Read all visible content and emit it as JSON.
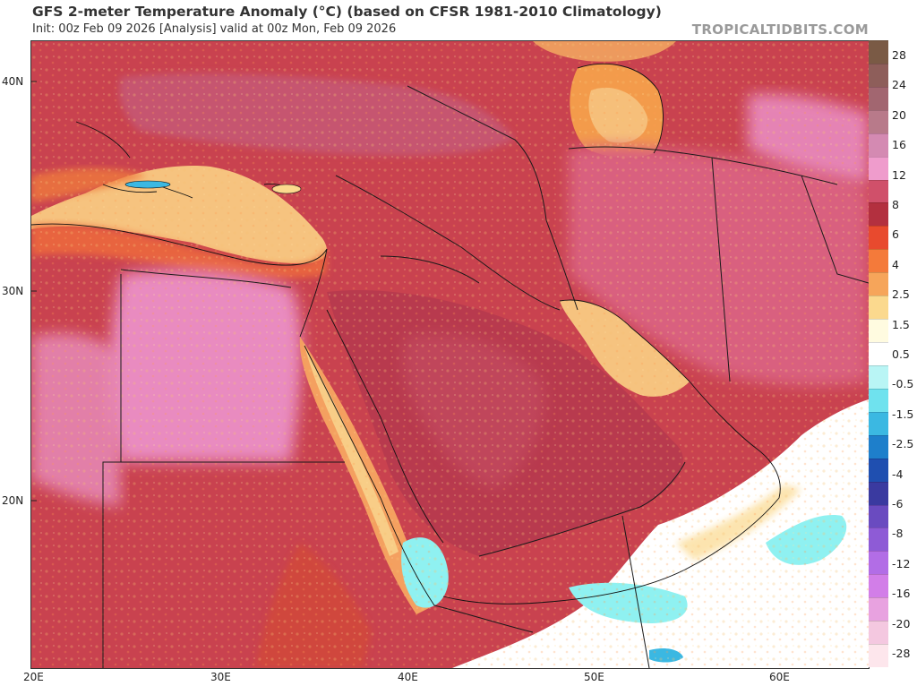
{
  "header": {
    "title": "GFS 2-meter Temperature Anomaly (°C) (based on CFSR 1981-2010 Climatology)",
    "subtitle": "Init: 00z Feb 09 2026   [Analysis]   valid at 00z Mon, Feb 09 2026",
    "brand": "TROPICALTIDBITS.COM"
  },
  "map": {
    "lat_labels": [
      "40N",
      "30N",
      "20N"
    ],
    "lon_labels": [
      "20E",
      "30E",
      "40E",
      "50E",
      "60E"
    ],
    "colors": {
      "sea_warm": "#f6c37f",
      "land_hot": "#b83a4e",
      "land_warm": "#d8555f",
      "land_pink": "#e98bc0",
      "coast_orange": "#ee6a3d",
      "cool_cyan": "#8ff1f1",
      "border": "#1a1a1a"
    }
  },
  "colorbar": {
    "labels": [
      "28",
      "24",
      "20",
      "16",
      "12",
      "8",
      "6",
      "4",
      "2.5",
      "1.5",
      "0.5",
      "-0.5",
      "-1.5",
      "-2.5",
      "-4",
      "-6",
      "-8",
      "-12",
      "-16",
      "-20",
      "-28"
    ],
    "colors": [
      "#7a5a45",
      "#8e5e5a",
      "#a26670",
      "#b87a8a",
      "#d48ab2",
      "#ef9ccc",
      "#d0506a",
      "#b3303f",
      "#e84a2e",
      "#f47a3a",
      "#f6a55a",
      "#fbd98e",
      "#fffbe0",
      "#ffffff",
      "#b9f5f5",
      "#6fe2ee",
      "#3bb8e2",
      "#1e7fcb",
      "#1f4fb0",
      "#3a3aa0",
      "#6a4bc0",
      "#8e5bd6",
      "#b26de6",
      "#d27ee8",
      "#e8a2e0",
      "#f4c8e0",
      "#fde6ec"
    ]
  }
}
